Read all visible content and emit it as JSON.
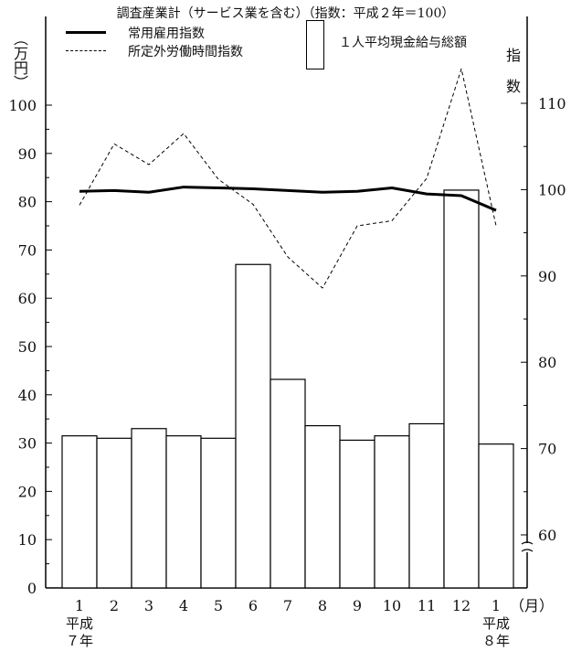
{
  "title": "調査産業計（サービス業を含む）（指数：平成２年＝100）",
  "legend": {
    "regular_employment": "常用雇用指数",
    "overtime_hours": "所定外労働時間指数",
    "total_cash_earnings": "１人平均現金給与総額"
  },
  "left_axis_unit": "（万円）",
  "right_axis_unit_top": "指",
  "right_axis_unit_bottom": "数",
  "month_unit": "（月）",
  "year_label_start_line1": "平成",
  "year_label_start_line2": "７年",
  "year_label_end_line1": "平成",
  "year_label_end_line2": "８年",
  "chart_data": {
    "type": "bar+line",
    "title": "調査産業計（サービス業を含む）（指数：平成２年＝100）",
    "categories": [
      "1",
      "2",
      "3",
      "4",
      "5",
      "6",
      "7",
      "8",
      "9",
      "10",
      "11",
      "12",
      "1"
    ],
    "xlabel": "（月）",
    "left_axis": {
      "label": "（万円）",
      "ylim": [
        0,
        110
      ],
      "ticks": [
        0,
        10,
        20,
        30,
        40,
        50,
        60,
        70,
        80,
        90,
        100
      ]
    },
    "right_axis": {
      "label": "指数",
      "ylim": [
        55,
        120
      ],
      "ticks": [
        60,
        70,
        80,
        90,
        100,
        110
      ],
      "axis_break": true
    },
    "series": [
      {
        "name": "１人平均現金給与総額",
        "type": "bar",
        "axis": "left",
        "values": [
          31.5,
          31.0,
          33.0,
          31.5,
          31.0,
          67.0,
          43.2,
          33.6,
          30.6,
          31.5,
          34.0,
          82.4,
          29.8
        ]
      },
      {
        "name": "常用雇用指数",
        "type": "line",
        "style": "solid",
        "axis": "right",
        "values": [
          99.8,
          99.9,
          99.7,
          100.3,
          100.2,
          100.1,
          99.9,
          99.7,
          99.8,
          100.2,
          99.5,
          99.3,
          97.6
        ]
      },
      {
        "name": "所定外労働時間指数",
        "type": "line",
        "style": "dashed",
        "axis": "right",
        "values": [
          98.2,
          105.3,
          102.9,
          106.5,
          101.2,
          98.3,
          92.2,
          88.6,
          95.8,
          96.4,
          101.3,
          114.0,
          95.8
        ]
      }
    ],
    "colors": {
      "bar_fill": "#ffffff",
      "bar_stroke": "#000000",
      "lines": "#000000"
    }
  }
}
